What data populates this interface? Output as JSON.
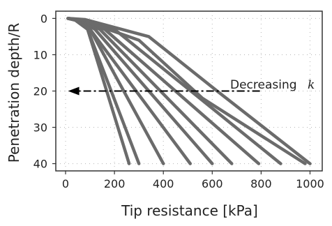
{
  "chart_data": {
    "type": "line",
    "title": "",
    "xlabel": "Tip resistance [kPa]",
    "ylabel": "Penetration depth/R",
    "xlim": [
      -40,
      1050
    ],
    "ylim": [
      42,
      -2
    ],
    "y_inverted": true,
    "xticks": [
      0,
      200,
      400,
      600,
      800,
      1000
    ],
    "xtick_labels": [
      "0",
      "200",
      "400",
      "600",
      "800",
      "1000"
    ],
    "yticks": [
      0,
      10,
      20,
      30,
      40
    ],
    "ytick_labels": [
      "0",
      "10",
      "20",
      "30",
      "40"
    ],
    "grid": true,
    "legend": "none",
    "line_color": "#6b6b6b",
    "series": [
      {
        "x": [
          10,
          40,
          90,
          260
        ],
        "y": [
          0,
          0.5,
          3,
          40
        ]
      },
      {
        "x": [
          10,
          40,
          90,
          300
        ],
        "y": [
          0,
          0.5,
          3,
          40
        ]
      },
      {
        "x": [
          10,
          50,
          100,
          400
        ],
        "y": [
          0,
          0.5,
          3,
          40
        ]
      },
      {
        "x": [
          10,
          50,
          100,
          510
        ],
        "y": [
          0,
          0.5,
          3,
          40
        ]
      },
      {
        "x": [
          10,
          60,
          120,
          600
        ],
        "y": [
          0,
          0.5,
          3,
          40
        ]
      },
      {
        "x": [
          10,
          60,
          140,
          680
        ],
        "y": [
          0,
          0.5,
          3,
          40
        ]
      },
      {
        "x": [
          10,
          70,
          160,
          790
        ],
        "y": [
          0,
          0.5,
          3,
          40
        ]
      },
      {
        "x": [
          10,
          80,
          200,
          880
        ],
        "y": [
          0,
          0.5,
          3,
          40
        ]
      },
      {
        "x": [
          10,
          60,
          300,
          560,
          980
        ],
        "y": [
          0,
          0.3,
          6,
          22,
          40
        ]
      },
      {
        "x": [
          10,
          80,
          340,
          620,
          1000
        ],
        "y": [
          0,
          0.3,
          5,
          20,
          40
        ]
      }
    ],
    "annotations": [
      {
        "text": "Decreasing",
        "symbol": "k",
        "arrow_from": [
          795,
          20
        ],
        "arrow_to": [
          10,
          20
        ]
      }
    ]
  }
}
